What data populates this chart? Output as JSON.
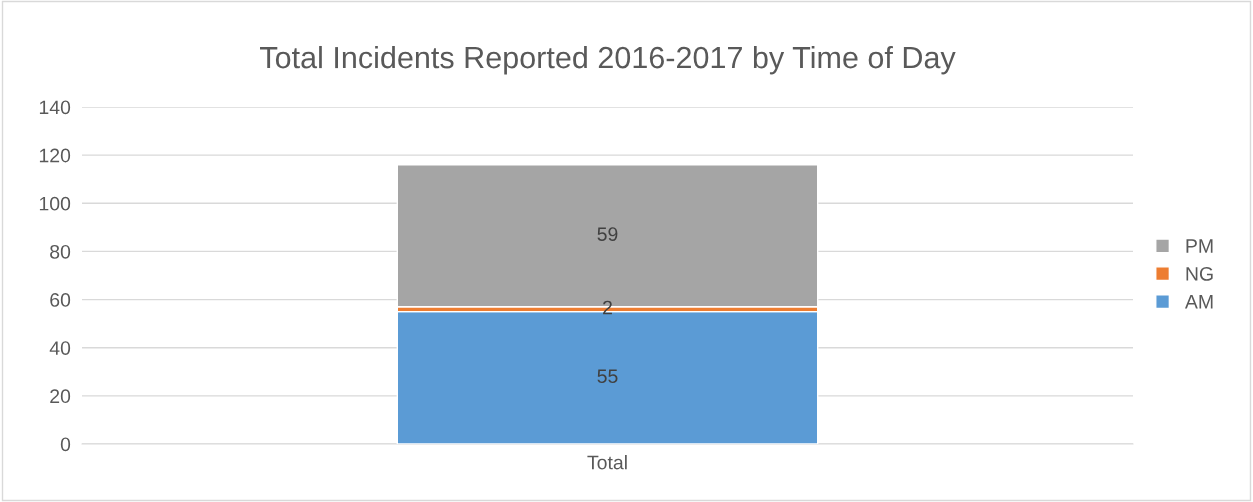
{
  "chart_data": {
    "type": "bar",
    "title": "Total Incidents Reported 2016-2017 by Time of Day",
    "categories": [
      "Total"
    ],
    "stacked": true,
    "series": [
      {
        "name": "AM",
        "color": "#5b9bd5",
        "values": [
          55
        ]
      },
      {
        "name": "NG",
        "color": "#ed7d31",
        "values": [
          2
        ]
      },
      {
        "name": "PM",
        "color": "#a5a5a5",
        "values": [
          59
        ]
      }
    ],
    "ylim": [
      0,
      140
    ],
    "yticks": [
      0,
      20,
      40,
      60,
      80,
      100,
      120,
      140
    ],
    "grid": "y",
    "legend": "right",
    "data_labels": true
  }
}
